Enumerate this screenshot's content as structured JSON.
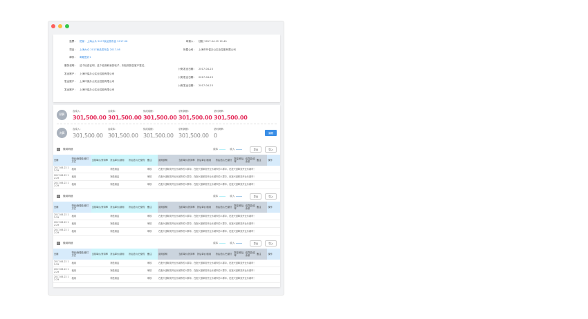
{
  "window": {
    "dots": [
      "#fc605c",
      "#fdbc40",
      "#34c84a"
    ]
  },
  "info": {
    "left": [
      {
        "label": "投票：",
        "value": "把家 · 上海大众 2017秋品发布会 2017-08",
        "link": true
      },
      {
        "label": "项目：",
        "value": "上海大众 2017秋品发布会 2017-08",
        "link": true
      },
      {
        "label": "邮件：",
        "value": "邮箱签约1",
        "link": true
      },
      {
        "label": "服务说明：",
        "value": "这个检查证明，这个检测和我的帖子，则检测报告客户签名。",
        "link": false
      },
      {
        "label": "发出账户：",
        "value": "上海环保办公实业控股有限公司",
        "link": false
      },
      {
        "label": "发出账户：",
        "value": "上海环保办公实业控股有限公司",
        "link": false
      },
      {
        "label": "发出账户：",
        "value": "上海环保办公实业控股有限公司",
        "link": false
      }
    ],
    "right": [
      {
        "label": "申请人：",
        "value": "钱航 2017-04-12 12:40"
      },
      {
        "label": "所属公司：",
        "value": "上海市环保办公实业控股有限公司"
      },
      {
        "label": "计划发出日期：",
        "value": "2017-04-23"
      },
      {
        "label": "计划发出日期：",
        "value": "2017-04-23"
      },
      {
        "label": "计划发出日期：",
        "value": "2017-04-23"
      }
    ]
  },
  "summary": {
    "rows": [
      {
        "badge": "预算",
        "style": "red",
        "metrics": [
          {
            "label": "合成入：",
            "value": "301,500.00"
          },
          {
            "label": "合成本：",
            "value": "301,500.00"
          },
          {
            "label": "供成成额：",
            "value": "301,500.00"
          },
          {
            "label": "总利润额：",
            "value": "301,500.00"
          },
          {
            "label": "总利润率：",
            "value": "301,500.00"
          }
        ]
      },
      {
        "badge": "决算",
        "style": "gray",
        "metrics": [
          {
            "label": "合成入：",
            "value": "301,500.00"
          },
          {
            "label": "合成本：",
            "value": "301,500.00"
          },
          {
            "label": "供成成额：",
            "value": "301,500.00"
          },
          {
            "label": "总利润额：",
            "value": "301,500.00"
          },
          {
            "label": "总利润率：",
            "value": "0"
          }
        ],
        "button": "编辑"
      }
    ]
  },
  "blocks": [
    {
      "title": "缴纳明细",
      "legend_cost": "成本",
      "legend_income": "收入",
      "export": "导出",
      "import": "导入"
    },
    {
      "title": "缴纳明细",
      "legend_cost": "成本",
      "legend_income": "收入",
      "export": "导出",
      "import": "导入"
    },
    {
      "title": "缴纳明细",
      "legend_cost": "成本",
      "legend_income": "收入",
      "export": "导出",
      "import": "导入"
    }
  ],
  "colors": {
    "cost": "#b6f0f8",
    "income": "#a8cbe8"
  },
  "table": {
    "headers": [
      "日期",
      "物品/管理费/缴付方式",
      "当前单价/折扣率",
      "折后单价/费用",
      "折后总价/已缴付",
      "备注",
      "费用说明",
      "当前单价/折扣率",
      "折后单价/费用",
      "折后总价/已缴付",
      "数量/税后率",
      "结算量/结余量",
      "备注",
      "操作"
    ],
    "header_groups": [
      "c1",
      "c1",
      "c2",
      "c2",
      "c2",
      "c2",
      "c3",
      "c3",
      "c3",
      "c3",
      "c3",
      "c3",
      "c3",
      "c1"
    ],
    "rows": [
      [
        "2017-06-22 12:29",
        "租用",
        "销售佣金",
        "审核",
        "在批兴道邮务开业乐城市的人群中，在批兴道邮务开业乐城市的人群中，在批兴道邮务开业乐城市！"
      ],
      [
        "2017-06-22 12:29",
        "租用",
        "销售佣金",
        "审核",
        "在批兴道邮务开业乐城市的人群中，在批兴道邮务开业乐城市的人群中，在批兴道邮务开业乐城市！"
      ],
      [
        "2017-06-22 12:29",
        "租用",
        "销售佣金",
        "审核",
        "在批兴道邮务开业乐城市的人群中，在批兴道邮务开业乐城市的人群中，在批兴道邮务开业乐城市！"
      ]
    ]
  }
}
